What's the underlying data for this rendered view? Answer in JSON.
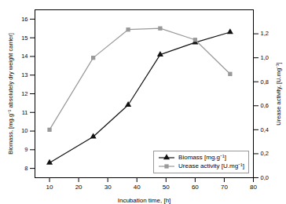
{
  "chart_data": {
    "type": "line",
    "x": [
      10,
      25,
      37,
      48,
      60,
      72
    ],
    "series": [
      {
        "name": "Biomass [mg.g⁻¹]",
        "color": "#111111",
        "marker": "triangle",
        "values": [
          8.3,
          9.7,
          11.4,
          14.1,
          14.75,
          15.3
        ]
      },
      {
        "name": "Urease activity [U.mg⁻¹]",
        "color": "#999999",
        "marker": "square",
        "axis": "y2",
        "values": [
          0.4,
          1.0,
          1.235,
          1.245,
          1.15,
          0.865
        ]
      }
    ],
    "xlabel": "Incubation time, [h]",
    "ylabel": "Biomass, [mg.g⁻¹ absolutely dry weight carrier]",
    "y2label": "Urease activity, [U.mg⁻¹]",
    "xlim": [
      5,
      80
    ],
    "xticks": [
      10,
      20,
      30,
      40,
      50,
      60,
      70,
      80
    ],
    "ylim": [
      7.5,
      16.5
    ],
    "yticks": [
      8,
      9,
      10,
      11,
      12,
      13,
      14,
      15,
      16
    ],
    "y2lim": [
      0.0,
      1.4
    ],
    "y2ticks": [
      {
        "value": 0.0,
        "label": "0,0"
      },
      {
        "value": 0.2,
        "label": "0,2"
      },
      {
        "value": 0.4,
        "label": "0,4"
      },
      {
        "value": 0.6,
        "label": "0,6"
      },
      {
        "value": 0.8,
        "label": "0,8"
      },
      {
        "value": 1.0,
        "label": "1,0"
      },
      {
        "value": 1.2,
        "label": "1,2"
      }
    ],
    "legend": "lower right",
    "grid": false
  }
}
